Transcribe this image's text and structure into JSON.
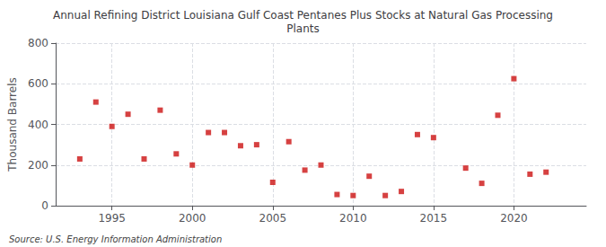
{
  "chart_data": {
    "type": "scatter",
    "title": "Annual Refining District Louisiana Gulf Coast Pentanes Plus Stocks at Natural Gas Processing\nPlants",
    "ylabel": "Thousand Barrels",
    "annotations": [
      "Source: U.S. Energy Information Administration"
    ],
    "x": [
      1993,
      1994,
      1995,
      1996,
      1997,
      1998,
      1999,
      2000,
      2001,
      2002,
      2003,
      2004,
      2005,
      2006,
      2007,
      2008,
      2009,
      2010,
      2011,
      2012,
      2013,
      2014,
      2015,
      2017,
      2018,
      2019,
      2020,
      2021,
      2022
    ],
    "values": [
      230,
      510,
      390,
      450,
      230,
      470,
      255,
      200,
      360,
      360,
      295,
      300,
      115,
      315,
      175,
      200,
      55,
      50,
      145,
      50,
      70,
      350,
      335,
      185,
      110,
      445,
      625,
      155,
      165
    ],
    "color": "#cc1111",
    "marker": "square",
    "xlim": [
      1991.5,
      2024.5
    ],
    "xticks": [
      1995,
      2000,
      2005,
      2010,
      2015,
      2020
    ],
    "ylim": [
      0,
      800
    ],
    "yticks": [
      0,
      200,
      400,
      600,
      800
    ],
    "grid": true
  }
}
